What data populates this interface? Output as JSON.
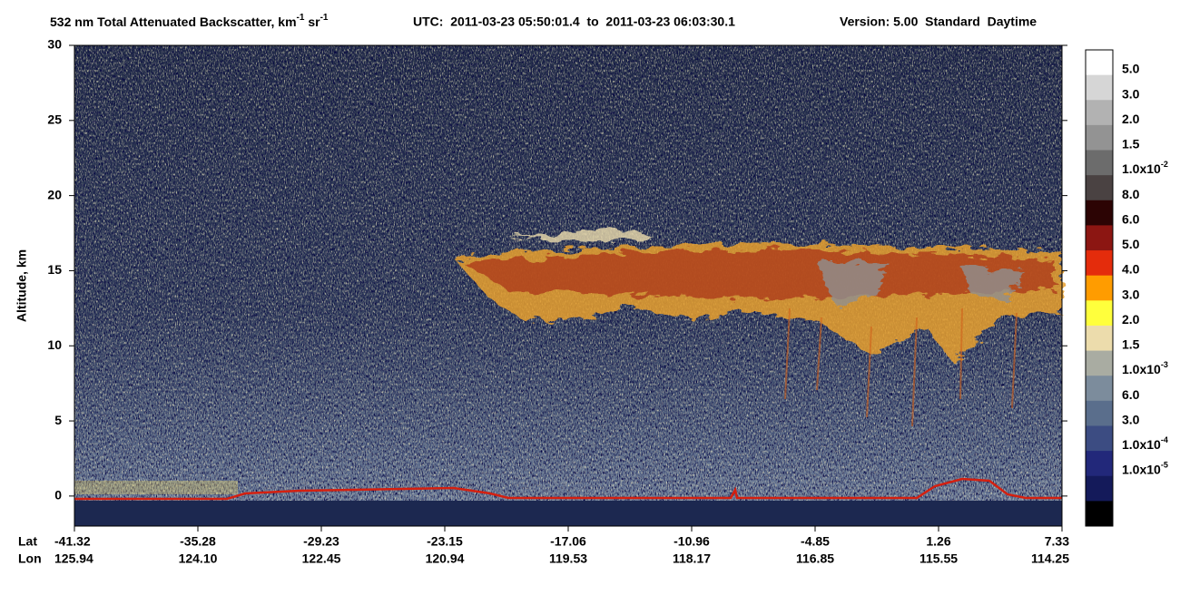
{
  "chart_data": {
    "type": "heatmap",
    "title": {
      "text": "532 nm Total Attenuated Backscatter, km",
      "exp1": "-1",
      "unit2": "sr",
      "exp2": "-1"
    },
    "utc": "UTC:  2011-03-23 05:50:01.4  to  2011-03-23 06:03:30.1",
    "version": "Version: 5.00  Standard  Daytime",
    "ylabel": "Altitude, km",
    "ylim": [
      -2,
      30
    ],
    "yticks": [
      0,
      5,
      10,
      15,
      20,
      25,
      30
    ],
    "lat_title": "Lat",
    "lon_title": "Lon",
    "lat_labels": [
      "-41.32",
      "-35.28",
      "-29.23",
      "-23.15",
      "-17.06",
      "-10.96",
      "-4.85",
      "1.26",
      "7.33"
    ],
    "lon_labels": [
      "125.94",
      "124.10",
      "122.45",
      "120.94",
      "119.53",
      "118.17",
      "116.85",
      "115.55",
      "114.25"
    ],
    "colorbar": {
      "colors": [
        "#ffffff",
        "#d6d6d6",
        "#b2b2b2",
        "#939393",
        "#6c6c6c",
        "#4a4242",
        "#2c0404",
        "#8c1612",
        "#e42c0c",
        "#ff9c00",
        "#ffff3c",
        "#ecdcac",
        "#a9aca2",
        "#7c8c9c",
        "#5a6e8c",
        "#3c4c82",
        "#22287a",
        "#141a5a",
        "#000000"
      ],
      "labels": [
        {
          "text": "5.0"
        },
        {
          "text": "3.0"
        },
        {
          "text": "2.0"
        },
        {
          "text": "1.5"
        },
        {
          "text": "1.0x10",
          "sup": "-2"
        },
        {
          "text": "8.0"
        },
        {
          "text": "6.0"
        },
        {
          "text": "5.0"
        },
        {
          "text": "4.0"
        },
        {
          "text": "3.0"
        },
        {
          "text": "2.0"
        },
        {
          "text": "1.5"
        },
        {
          "text": "1.0x10",
          "sup": "-3"
        },
        {
          "text": "6.0"
        },
        {
          "text": "3.0"
        },
        {
          "text": "1.0x10",
          "sup": "-4"
        },
        {
          "text": "1.0x10",
          "sup": "-5"
        }
      ]
    }
  }
}
